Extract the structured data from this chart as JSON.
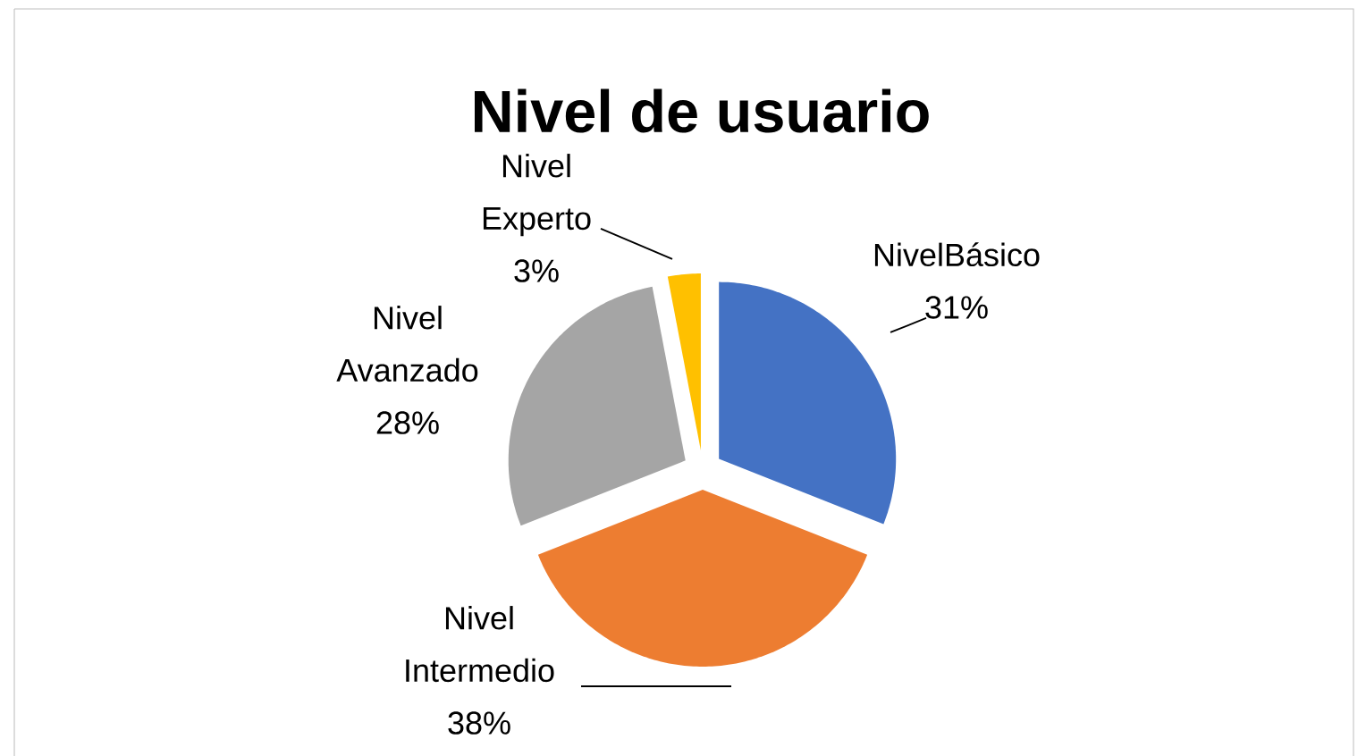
{
  "chart_data": {
    "type": "pie",
    "title": "Nivel de usuario",
    "categories": [
      "NivelBásico",
      "Nivel Intermedio",
      "Nivel Avanzado",
      "Nivel Experto"
    ],
    "values": [
      31,
      38,
      28,
      3
    ],
    "value_labels": [
      "31%",
      "38%",
      "28%",
      "3%"
    ],
    "colors": [
      "#4472c4",
      "#ed7d31",
      "#a5a5a5",
      "#ffc000"
    ]
  }
}
